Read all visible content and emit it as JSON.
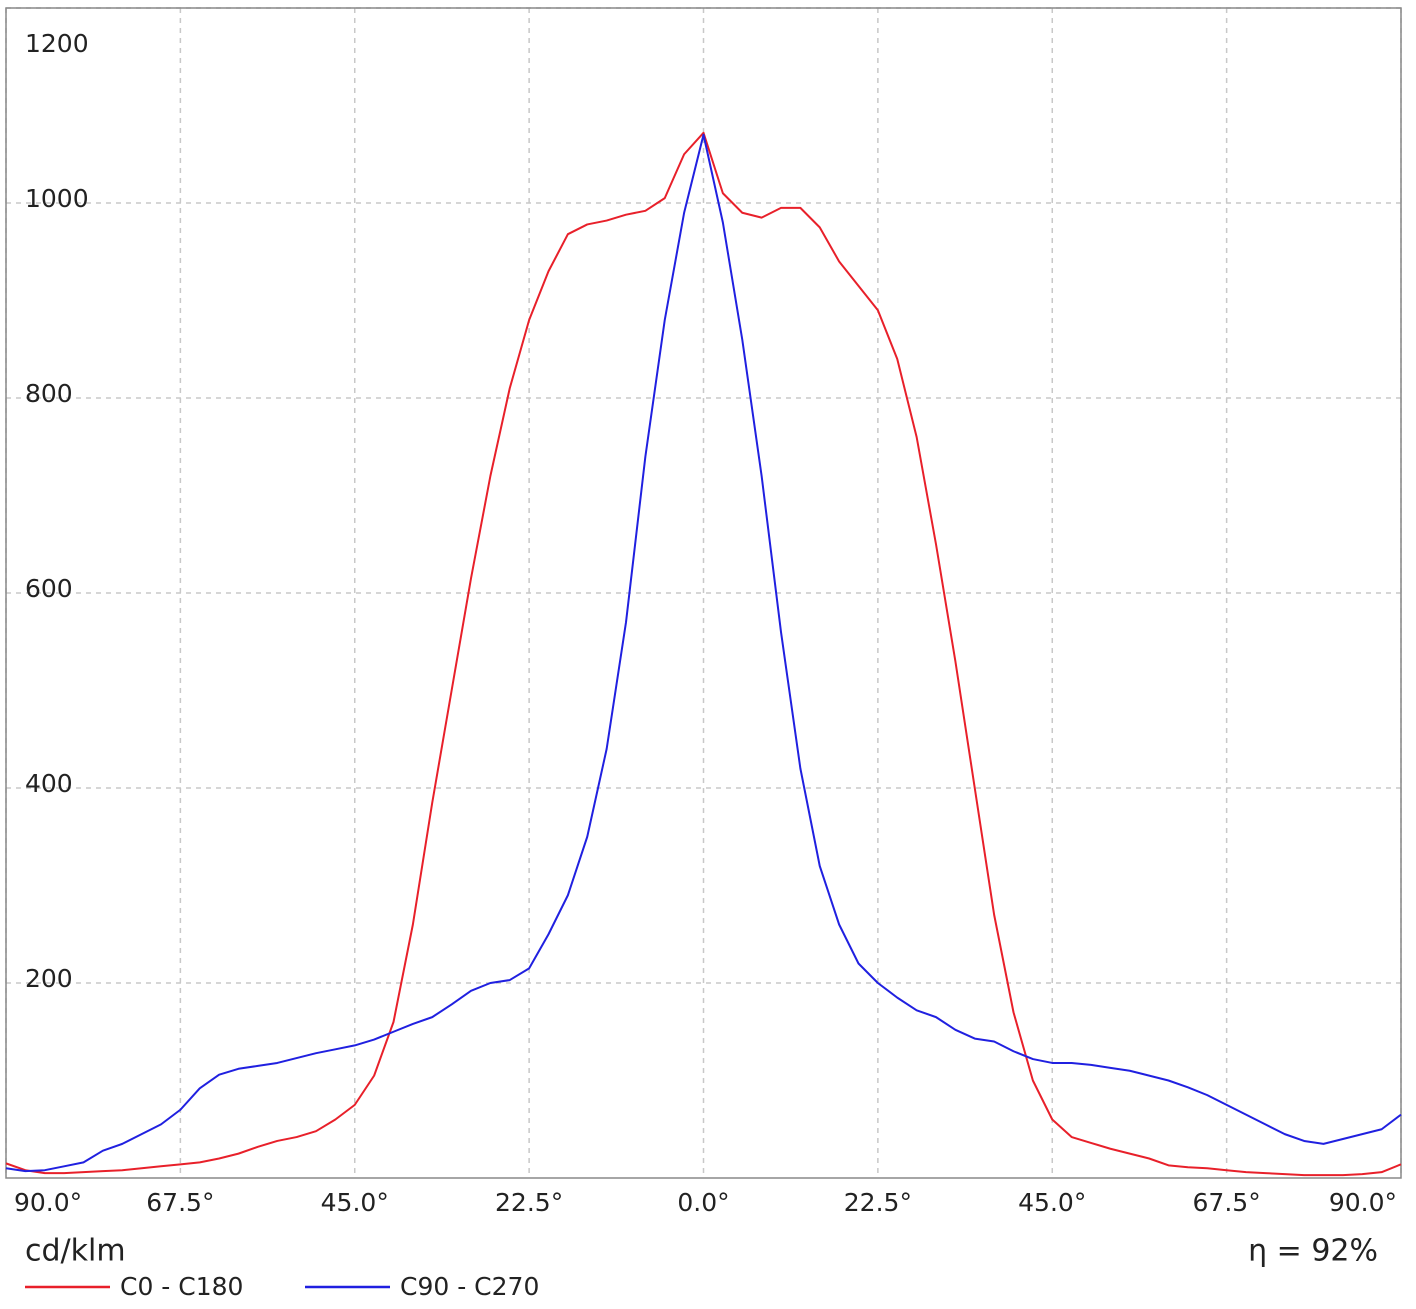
{
  "chart_data": {
    "type": "line",
    "ylabel": "cd/klm",
    "annotation": "η = 92%",
    "x": [
      -90,
      -87.5,
      -85,
      -82.5,
      -80,
      -77.5,
      -75,
      -72.5,
      -70,
      -67.5,
      -65,
      -62.5,
      -60,
      -57.5,
      -55,
      -52.5,
      -50,
      -47.5,
      -45,
      -42.5,
      -40,
      -37.5,
      -35,
      -32.5,
      -30,
      -27.5,
      -25,
      -22.5,
      -20,
      -17.5,
      -15,
      -12.5,
      -10,
      -7.5,
      -5,
      -2.5,
      0,
      2.5,
      5,
      7.5,
      10,
      12.5,
      15,
      17.5,
      20,
      22.5,
      25,
      27.5,
      30,
      32.5,
      35,
      37.5,
      40,
      42.5,
      45,
      47.5,
      50,
      52.5,
      55,
      57.5,
      60,
      62.5,
      65,
      67.5,
      70,
      72.5,
      75,
      77.5,
      80,
      82.5,
      85,
      87.5,
      90
    ],
    "series": [
      {
        "name": "C0 - C180",
        "color": "#e8202a",
        "values": [
          15,
          8,
          5,
          5,
          6,
          7,
          8,
          10,
          12,
          14,
          16,
          20,
          25,
          32,
          38,
          42,
          48,
          60,
          75,
          105,
          160,
          260,
          385,
          500,
          615,
          720,
          810,
          880,
          930,
          968,
          978,
          982,
          988,
          992,
          1005,
          1050,
          1072,
          1010,
          990,
          985,
          995,
          995,
          975,
          940,
          915,
          890,
          840,
          760,
          650,
          530,
          400,
          270,
          170,
          100,
          60,
          42,
          36,
          30,
          25,
          20,
          13,
          11,
          10,
          8,
          6,
          5,
          4,
          3,
          3,
          3,
          4,
          6,
          14
        ]
      },
      {
        "name": "C90 - C270",
        "color": "#2020e0",
        "values": [
          10,
          7,
          8,
          12,
          16,
          28,
          35,
          45,
          55,
          70,
          92,
          106,
          112,
          115,
          118,
          123,
          128,
          132,
          136,
          142,
          150,
          158,
          165,
          178,
          192,
          200,
          203,
          215,
          250,
          290,
          350,
          440,
          570,
          740,
          880,
          990,
          1070,
          980,
          860,
          720,
          560,
          420,
          320,
          260,
          220,
          200,
          185,
          172,
          165,
          152,
          143,
          140,
          130,
          122,
          118,
          118,
          116,
          113,
          110,
          105,
          100,
          93,
          85,
          75,
          65,
          55,
          45,
          38,
          35,
          40,
          45,
          50,
          65
        ]
      }
    ],
    "xlim": [
      -90,
      90
    ],
    "xticks": [
      {
        "value": -90,
        "label": "90.0°"
      },
      {
        "value": -67.5,
        "label": "67.5°"
      },
      {
        "value": -45,
        "label": "45.0°"
      },
      {
        "value": -22.5,
        "label": "22.5°"
      },
      {
        "value": 0,
        "label": "0.0°"
      },
      {
        "value": 22.5,
        "label": "22.5°"
      },
      {
        "value": 45,
        "label": "45.0°"
      },
      {
        "value": 67.5,
        "label": "67.5°"
      },
      {
        "value": 90,
        "label": "90.0°"
      }
    ],
    "ylim": [
      0,
      1200
    ],
    "yticks": [
      200,
      400,
      600,
      800,
      1000,
      1200
    ],
    "grid": true
  }
}
